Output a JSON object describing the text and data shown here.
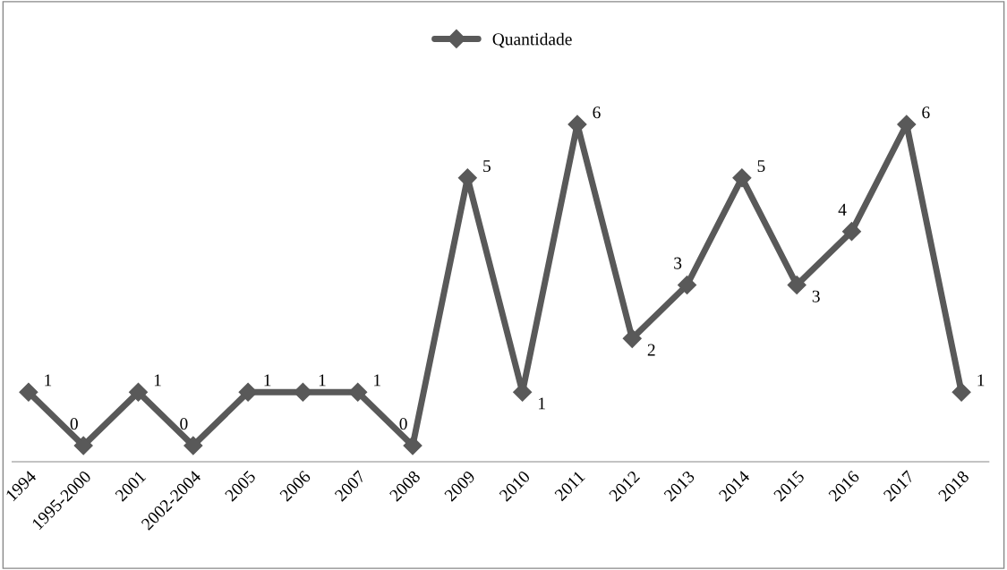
{
  "chart_data": {
    "type": "line",
    "categories": [
      "1994",
      "1995-2000",
      "2001",
      "2002-2004",
      "2005",
      "2006",
      "2007",
      "2008",
      "2009",
      "2010",
      "2011",
      "2012",
      "2013",
      "2014",
      "2015",
      "2016",
      "2017",
      "2018"
    ],
    "series": [
      {
        "name": "Quantidade",
        "color": "#595959",
        "values": [
          1,
          0,
          1,
          0,
          1,
          1,
          1,
          0,
          5,
          1,
          6,
          2,
          3,
          5,
          3,
          4,
          6,
          1
        ]
      }
    ],
    "marker": "diamond",
    "line_style": "solid",
    "data_labels": true,
    "legend": "top",
    "grid": false
  }
}
